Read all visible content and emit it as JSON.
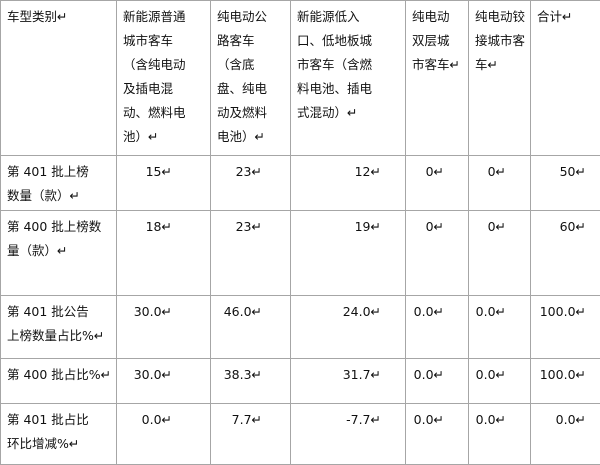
{
  "table": {
    "header": [
      [
        "车型类别↵"
      ],
      [
        "新能源普通",
        "城市客车",
        "（含纯电动",
        "及插电混",
        "动、燃料电",
        "池）↵"
      ],
      [
        "纯电动公",
        "路客车",
        "（含底",
        "盘、纯电",
        "动及燃料",
        "电池）↵"
      ],
      [
        "新能源低入",
        "口、低地板城",
        "市客车（含燃",
        "料电池、插电",
        "式混动）↵"
      ],
      [
        "纯电动",
        "双层城",
        "市客车↵"
      ],
      [
        "纯电动铰",
        "接城市客",
        "车↵"
      ],
      [
        "合计↵"
      ]
    ],
    "rows": [
      [
        [
          "第 401 批上榜",
          "数量（款）↵"
        ],
        "15↵",
        "23↵",
        "12↵",
        "0↵",
        "0↵",
        "50↵"
      ],
      [
        [
          "第 400 批上榜数",
          "量（款）↵"
        ],
        "18↵",
        "23↵",
        "19↵",
        "0↵",
        "0↵",
        "60↵"
      ],
      [
        [
          "第 401 批公告",
          "上榜数量占比%↵"
        ],
        "30.0↵",
        "46.0↵",
        "24.0↵",
        "0.0↵",
        "0.0↵",
        "100.0↵"
      ],
      [
        [
          "第 400 批占比%↵"
        ],
        "30.0↵",
        "38.3↵",
        "31.7↵",
        "0.0↵",
        "0.0↵",
        "100.0↵"
      ],
      [
        [
          "第 401 批占比",
          "环比增减%↵"
        ],
        "0.0↵",
        "7.7↵",
        "-7.7↵",
        "0.0↵",
        "0.0↵",
        "0.0↵"
      ]
    ]
  }
}
